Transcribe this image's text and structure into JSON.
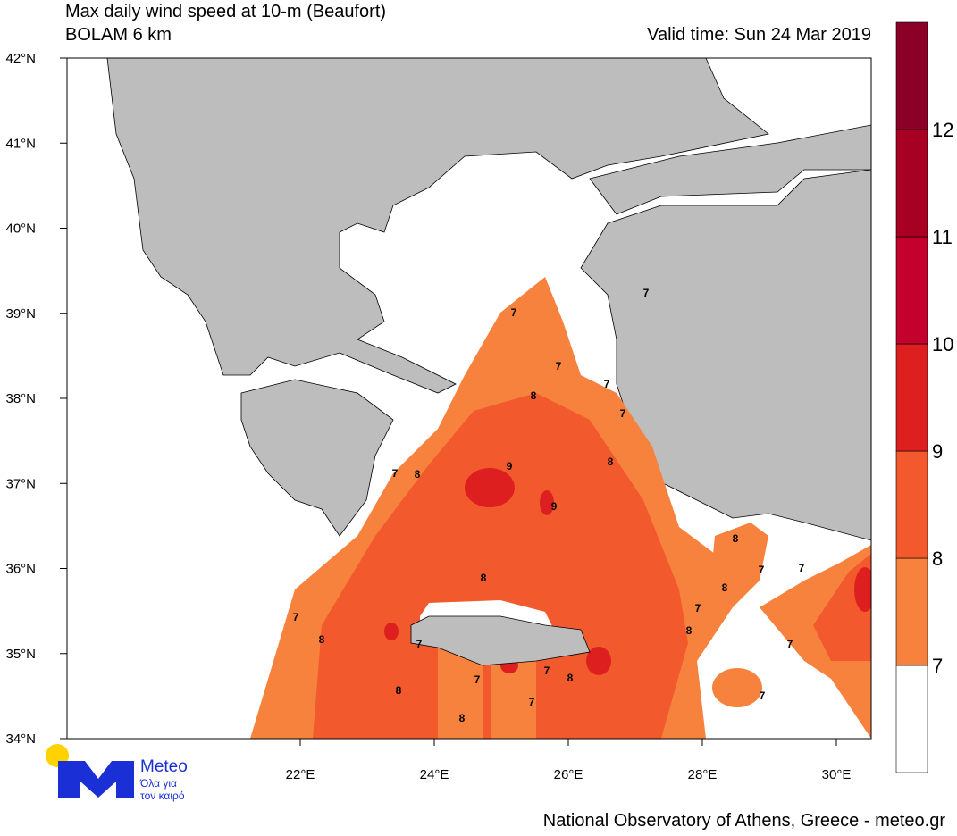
{
  "header": {
    "title": "Max daily wind speed at 10-m (Beaufort)",
    "subtitle": "BOLAM 6 km",
    "valid_time": "Valid time: Sun 24 Mar 2019"
  },
  "map": {
    "lat_ticks": [
      {
        "value": 42,
        "label": "42°N"
      },
      {
        "value": 41,
        "label": "41°N"
      },
      {
        "value": 40,
        "label": "40°N"
      },
      {
        "value": 39,
        "label": "39°N"
      },
      {
        "value": 38,
        "label": "38°N"
      },
      {
        "value": 37,
        "label": "37°N"
      },
      {
        "value": 36,
        "label": "36°N"
      },
      {
        "value": 35,
        "label": "35°N"
      },
      {
        "value": 34,
        "label": "34°N"
      }
    ],
    "lon_ticks": [
      {
        "value": 22,
        "label": "22°E"
      },
      {
        "value": 24,
        "label": "24°E"
      },
      {
        "value": 26,
        "label": "26°E"
      },
      {
        "value": 28,
        "label": "28°E"
      },
      {
        "value": 30,
        "label": "30°E"
      }
    ],
    "contour_labels": [
      7,
      7,
      8,
      7,
      7,
      8,
      9,
      9,
      7,
      8,
      8,
      7,
      8,
      7,
      7,
      8,
      7,
      8,
      7,
      8,
      7,
      7,
      7,
      7,
      8,
      8,
      7,
      8,
      7
    ]
  },
  "colorbar": {
    "levels": [
      7,
      8,
      9,
      10,
      11,
      12
    ],
    "colors": [
      "#ffffff",
      "#f7823d",
      "#f25a2e",
      "#de1f1f",
      "#c4002c",
      "#a80022",
      "#8b0026"
    ]
  },
  "logo": {
    "name": "Meteo",
    "line1": "Όλα για",
    "line2": "τον καιρό"
  },
  "footer": "National Observatory of Athens, Greece - meteo.gr"
}
